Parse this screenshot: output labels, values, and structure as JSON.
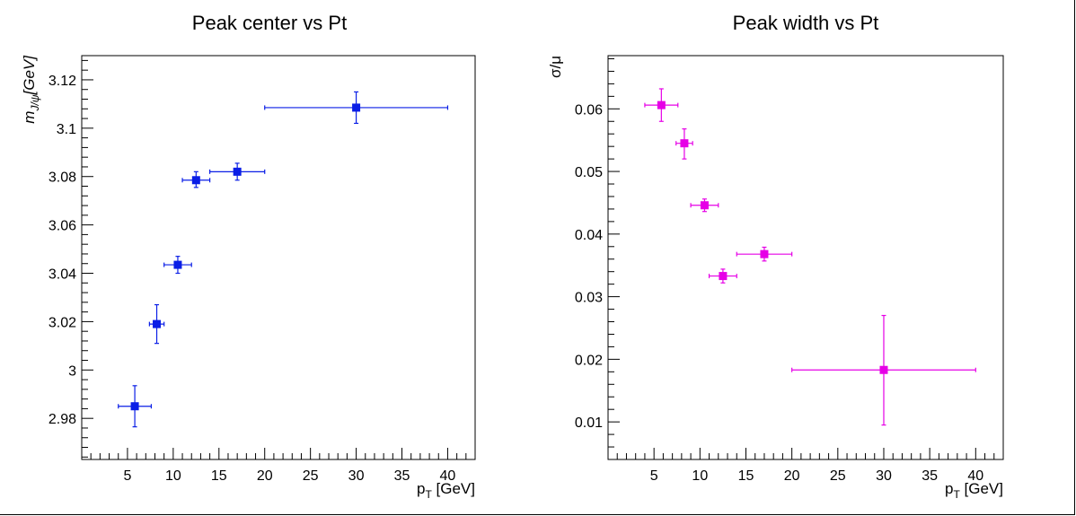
{
  "chart_data": [
    {
      "type": "scatter",
      "title": "Peak center vs Pt",
      "xlabel_main": "p",
      "xlabel_sub": "T",
      "xlabel_unit": " [GeV]",
      "ylabel_main": "m",
      "ylabel_sub": "J/ψ",
      "ylabel_unit": "[GeV]",
      "xlim": [
        0,
        43
      ],
      "ylim": [
        2.963,
        3.13
      ],
      "xticks": [
        5,
        10,
        15,
        20,
        25,
        30,
        35,
        40
      ],
      "xtick_labels": [
        "5",
        "10",
        "15",
        "20",
        "25",
        "30",
        "35",
        "40"
      ],
      "yticks": [
        2.98,
        3.0,
        3.02,
        3.04,
        3.06,
        3.08,
        3.1,
        3.12
      ],
      "ytick_labels": [
        "2.98",
        "3",
        "3.02",
        "3.04",
        "3.06",
        "3.08",
        "3.1",
        "3.12"
      ],
      "color": "#0a1ee6",
      "series": [
        {
          "points": [
            {
              "x": 5.8,
              "y": 2.985,
              "xerr": [
                4.0,
                7.6
              ],
              "yerr": [
                2.9765,
                2.9935
              ]
            },
            {
              "x": 8.2,
              "y": 3.019,
              "xerr": [
                7.4,
                9.0
              ],
              "yerr": [
                3.011,
                3.027
              ]
            },
            {
              "x": 10.5,
              "y": 3.0435,
              "xerr": [
                9.0,
                12.0
              ],
              "yerr": [
                3.04,
                3.047
              ]
            },
            {
              "x": 12.5,
              "y": 3.0785,
              "xerr": [
                11.0,
                14.0
              ],
              "yerr": [
                3.0755,
                3.082
              ]
            },
            {
              "x": 17.0,
              "y": 3.082,
              "xerr": [
                14.0,
                20.0
              ],
              "yerr": [
                3.0785,
                3.0855
              ]
            },
            {
              "x": 30.0,
              "y": 3.1085,
              "xerr": [
                20.0,
                40.0
              ],
              "yerr": [
                3.102,
                3.115
              ]
            }
          ]
        }
      ]
    },
    {
      "type": "scatter",
      "title": "Peak width vs Pt",
      "xlabel_main": "p",
      "xlabel_sub": "T",
      "xlabel_unit": " [GeV]",
      "ylabel_main": "σ/μ",
      "ylabel_sub": "",
      "ylabel_unit": "",
      "xlim": [
        0,
        43
      ],
      "ylim": [
        0.004,
        0.0685
      ],
      "xticks": [
        5,
        10,
        15,
        20,
        25,
        30,
        35,
        40
      ],
      "xtick_labels": [
        "5",
        "10",
        "15",
        "20",
        "25",
        "30",
        "35",
        "40"
      ],
      "yticks": [
        0.01,
        0.02,
        0.03,
        0.04,
        0.05,
        0.06
      ],
      "ytick_labels": [
        "0.01",
        "0.02",
        "0.03",
        "0.04",
        "0.05",
        "0.06"
      ],
      "color": "#e600e6",
      "series": [
        {
          "points": [
            {
              "x": 5.8,
              "y": 0.0606,
              "xerr": [
                4.0,
                7.6
              ],
              "yerr": [
                0.058,
                0.0632
              ]
            },
            {
              "x": 8.3,
              "y": 0.0545,
              "xerr": [
                7.4,
                9.2
              ],
              "yerr": [
                0.052,
                0.0568
              ]
            },
            {
              "x": 10.5,
              "y": 0.0446,
              "xerr": [
                9.0,
                12.0
              ],
              "yerr": [
                0.0436,
                0.0456
              ]
            },
            {
              "x": 12.5,
              "y": 0.0333,
              "xerr": [
                11.0,
                14.0
              ],
              "yerr": [
                0.0322,
                0.0344
              ]
            },
            {
              "x": 17.0,
              "y": 0.0368,
              "xerr": [
                14.0,
                20.0
              ],
              "yerr": [
                0.0357,
                0.0379
              ]
            },
            {
              "x": 30.0,
              "y": 0.0183,
              "xerr": [
                20.0,
                40.0
              ],
              "yerr": [
                0.0095,
                0.027
              ]
            }
          ]
        }
      ]
    }
  ]
}
